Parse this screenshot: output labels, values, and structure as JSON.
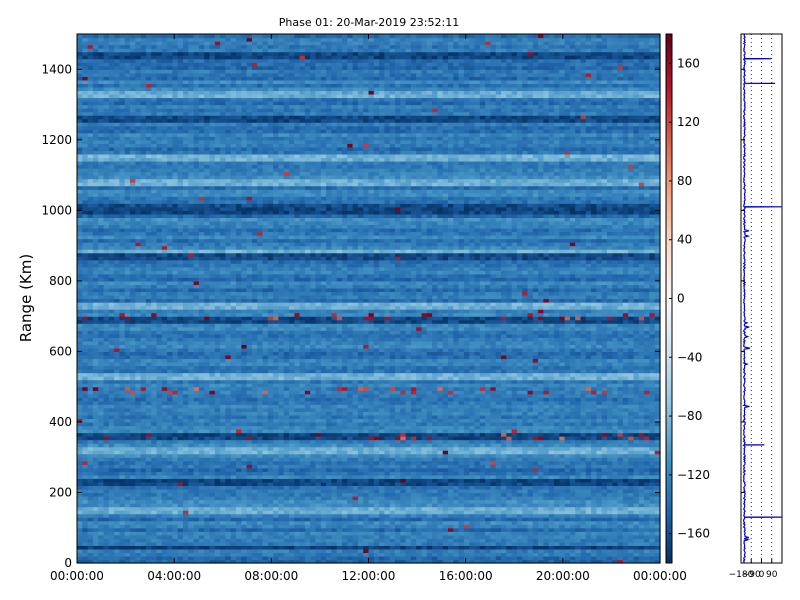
{
  "chart_data": [
    {
      "type": "heatmap",
      "title": "Phase 01: 20-Mar-2019 23:52:11",
      "xlabel": "",
      "ylabel": "Range (Km)",
      "x_tick_labels": [
        "00:00:00",
        "04:00:00",
        "08:00:00",
        "12:00:00",
        "16:00:00",
        "20:00:00",
        "00:00:00"
      ],
      "x_tick_hours": [
        0,
        4,
        8,
        12,
        16,
        20,
        24
      ],
      "xlim_hours": [
        0,
        24
      ],
      "y_ticks": [
        0,
        200,
        400,
        600,
        800,
        1000,
        1200,
        1400
      ],
      "ylim": [
        0,
        1500
      ],
      "colorbar": {
        "colormap": "RdBu_r",
        "range": [
          -180,
          180
        ],
        "ticks": [
          -160,
          -120,
          -80,
          -40,
          0,
          40,
          80,
          120,
          160
        ],
        "tick_labels": [
          "−160",
          "−120",
          "−80",
          "−40",
          "0",
          "40",
          "80",
          "120",
          "160"
        ]
      },
      "value_distribution": "phase values mostly between -170 and -90 degrees (blue), sparse spikes toward +180 (dark red) concentrated near ranges 360, 490 and 700 km",
      "bright_bands_km": [
        1150,
        1330,
        1080,
        880,
        730,
        530,
        320,
        150
      ],
      "dark_bands_km": [
        1010,
        1440,
        1260,
        1000,
        870,
        690,
        360,
        230,
        45
      ],
      "red_spike_rows_km": [
        360,
        490,
        700
      ]
    },
    {
      "type": "line",
      "title": "",
      "xlabel": "",
      "ylabel": "",
      "x_tick_labels": [
        "−180",
        "−90",
        "0",
        "90"
      ],
      "x_ticks": [
        -180,
        -90,
        0,
        90
      ],
      "xlim": [
        -180,
        180
      ],
      "ylim": [
        0,
        1500
      ],
      "grid": "dotted vertical",
      "series": [
        {
          "baseline_value": -150,
          "spikes": [
            {
              "y": 1010,
              "x": 175
            },
            {
              "y": 1360,
              "x": 120
            },
            {
              "y": 130,
              "x": 175
            },
            {
              "y": 1430,
              "x": 85
            },
            {
              "y": 335,
              "x": 25
            }
          ]
        }
      ]
    }
  ]
}
